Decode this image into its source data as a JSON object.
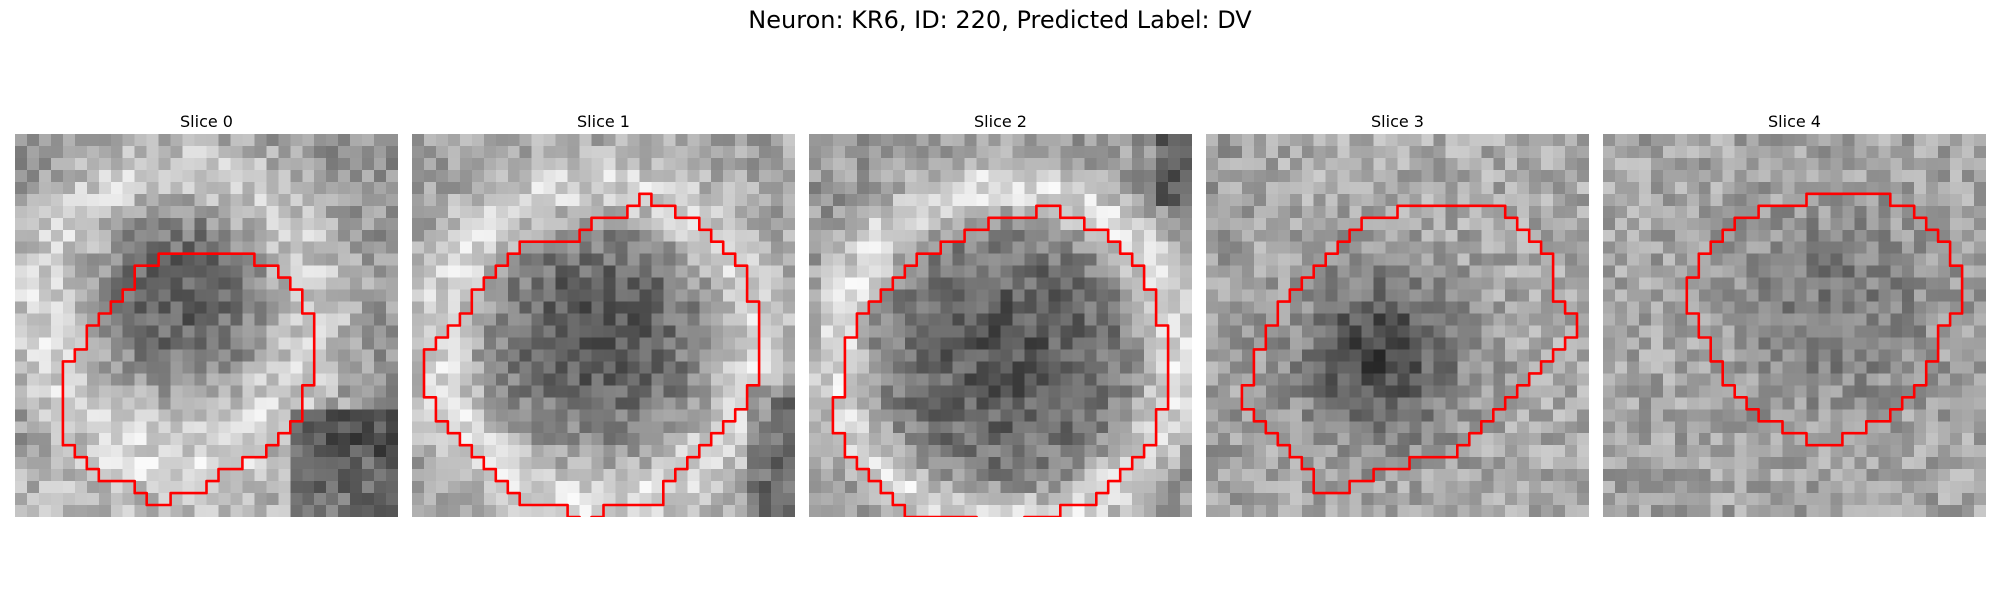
{
  "figure": {
    "title": "Neuron: KR6, ID: 220, Predicted Label: DV"
  },
  "panels": [
    {
      "label": "Slice 0",
      "outline": [
        [
          12,
          10
        ],
        [
          20,
          10
        ],
        [
          20,
          11
        ],
        [
          22,
          11
        ],
        [
          22,
          12
        ],
        [
          23,
          12
        ],
        [
          23,
          13
        ],
        [
          24,
          13
        ],
        [
          24,
          15
        ],
        [
          25,
          15
        ],
        [
          25,
          21
        ],
        [
          24,
          21
        ],
        [
          24,
          24
        ],
        [
          23,
          24
        ],
        [
          23,
          25
        ],
        [
          22,
          25
        ],
        [
          22,
          26
        ],
        [
          21,
          26
        ],
        [
          21,
          27
        ],
        [
          19,
          27
        ],
        [
          19,
          28
        ],
        [
          17,
          28
        ],
        [
          17,
          29
        ],
        [
          16,
          29
        ],
        [
          16,
          30
        ],
        [
          13,
          30
        ],
        [
          13,
          31
        ],
        [
          11,
          31
        ],
        [
          11,
          30
        ],
        [
          10,
          30
        ],
        [
          10,
          29
        ],
        [
          7,
          29
        ],
        [
          7,
          28
        ],
        [
          6,
          28
        ],
        [
          6,
          27
        ],
        [
          5,
          27
        ],
        [
          5,
          26
        ],
        [
          4,
          26
        ],
        [
          4,
          19
        ],
        [
          5,
          19
        ],
        [
          5,
          18
        ],
        [
          6,
          18
        ],
        [
          6,
          16
        ],
        [
          7,
          16
        ],
        [
          7,
          15
        ],
        [
          8,
          15
        ],
        [
          8,
          14
        ],
        [
          9,
          14
        ],
        [
          9,
          13
        ],
        [
          10,
          13
        ],
        [
          10,
          11
        ],
        [
          12,
          11
        ]
      ]
    },
    {
      "label": "Slice 1",
      "outline": [
        [
          13,
          9
        ],
        [
          14,
          9
        ],
        [
          14,
          8
        ],
        [
          15,
          8
        ],
        [
          15,
          7
        ],
        [
          18,
          7
        ],
        [
          18,
          6
        ],
        [
          19,
          6
        ],
        [
          19,
          5
        ],
        [
          20,
          5
        ],
        [
          20,
          6
        ],
        [
          22,
          6
        ],
        [
          22,
          7
        ],
        [
          24,
          7
        ],
        [
          24,
          8
        ],
        [
          25,
          8
        ],
        [
          25,
          9
        ],
        [
          26,
          9
        ],
        [
          26,
          10
        ],
        [
          27,
          10
        ],
        [
          27,
          11
        ],
        [
          28,
          11
        ],
        [
          28,
          14
        ],
        [
          29,
          14
        ],
        [
          29,
          21
        ],
        [
          28,
          21
        ],
        [
          28,
          23
        ],
        [
          27,
          23
        ],
        [
          27,
          24
        ],
        [
          26,
          24
        ],
        [
          26,
          25
        ],
        [
          25,
          25
        ],
        [
          25,
          26
        ],
        [
          24,
          26
        ],
        [
          24,
          27
        ],
        [
          23,
          27
        ],
        [
          23,
          28
        ],
        [
          22,
          28
        ],
        [
          22,
          29
        ],
        [
          21,
          29
        ],
        [
          21,
          31
        ],
        [
          16,
          31
        ],
        [
          16,
          32
        ],
        [
          15,
          32
        ],
        [
          15,
          33
        ],
        [
          14,
          33
        ],
        [
          14,
          32
        ],
        [
          13,
          32
        ],
        [
          13,
          31
        ],
        [
          9,
          31
        ],
        [
          9,
          30
        ],
        [
          8,
          30
        ],
        [
          8,
          29
        ],
        [
          7,
          29
        ],
        [
          7,
          28
        ],
        [
          6,
          28
        ],
        [
          6,
          27
        ],
        [
          5,
          27
        ],
        [
          5,
          26
        ],
        [
          4,
          26
        ],
        [
          4,
          25
        ],
        [
          3,
          25
        ],
        [
          3,
          24
        ],
        [
          2,
          24
        ],
        [
          2,
          22
        ],
        [
          1,
          22
        ],
        [
          1,
          18
        ],
        [
          2,
          18
        ],
        [
          2,
          17
        ],
        [
          3,
          17
        ],
        [
          3,
          16
        ],
        [
          4,
          16
        ],
        [
          4,
          15
        ],
        [
          5,
          15
        ],
        [
          5,
          13
        ],
        [
          6,
          13
        ],
        [
          6,
          12
        ],
        [
          7,
          12
        ],
        [
          7,
          11
        ],
        [
          8,
          11
        ],
        [
          8,
          10
        ],
        [
          9,
          10
        ],
        [
          9,
          9
        ],
        [
          13,
          9
        ]
      ]
    },
    {
      "label": "Slice 2",
      "outline": [
        [
          10,
          10
        ],
        [
          11,
          10
        ],
        [
          11,
          9
        ],
        [
          13,
          9
        ],
        [
          13,
          8
        ],
        [
          15,
          8
        ],
        [
          15,
          7
        ],
        [
          19,
          7
        ],
        [
          19,
          6
        ],
        [
          21,
          6
        ],
        [
          21,
          7
        ],
        [
          23,
          7
        ],
        [
          23,
          8
        ],
        [
          25,
          8
        ],
        [
          25,
          9
        ],
        [
          26,
          9
        ],
        [
          26,
          10
        ],
        [
          27,
          10
        ],
        [
          27,
          11
        ],
        [
          28,
          11
        ],
        [
          28,
          13
        ],
        [
          29,
          13
        ],
        [
          29,
          16
        ],
        [
          30,
          16
        ],
        [
          30,
          23
        ],
        [
          29,
          23
        ],
        [
          29,
          26
        ],
        [
          28,
          26
        ],
        [
          28,
          27
        ],
        [
          27,
          27
        ],
        [
          27,
          28
        ],
        [
          26,
          28
        ],
        [
          26,
          29
        ],
        [
          25,
          29
        ],
        [
          25,
          30
        ],
        [
          24,
          30
        ],
        [
          24,
          31
        ],
        [
          21,
          31
        ],
        [
          21,
          32
        ],
        [
          18,
          32
        ],
        [
          18,
          33
        ],
        [
          14,
          33
        ],
        [
          14,
          32
        ],
        [
          8,
          32
        ],
        [
          8,
          31
        ],
        [
          7,
          31
        ],
        [
          7,
          30
        ],
        [
          6,
          30
        ],
        [
          6,
          29
        ],
        [
          5,
          29
        ],
        [
          5,
          28
        ],
        [
          4,
          28
        ],
        [
          4,
          27
        ],
        [
          3,
          27
        ],
        [
          3,
          25
        ],
        [
          2,
          25
        ],
        [
          2,
          22
        ],
        [
          3,
          22
        ],
        [
          3,
          17
        ],
        [
          4,
          17
        ],
        [
          4,
          15
        ],
        [
          5,
          15
        ],
        [
          5,
          14
        ],
        [
          6,
          14
        ],
        [
          6,
          13
        ],
        [
          7,
          13
        ],
        [
          7,
          12
        ],
        [
          8,
          12
        ],
        [
          8,
          11
        ],
        [
          9,
          11
        ],
        [
          9,
          10
        ],
        [
          10,
          10
        ]
      ]
    },
    {
      "label": "Slice 3",
      "outline": [
        [
          15,
          7
        ],
        [
          16,
          7
        ],
        [
          16,
          6
        ],
        [
          25,
          6
        ],
        [
          25,
          7
        ],
        [
          26,
          7
        ],
        [
          26,
          8
        ],
        [
          27,
          8
        ],
        [
          27,
          9
        ],
        [
          28,
          9
        ],
        [
          28,
          10
        ],
        [
          29,
          10
        ],
        [
          29,
          12
        ],
        [
          29,
          14
        ],
        [
          30,
          14
        ],
        [
          30,
          15
        ],
        [
          31,
          15
        ],
        [
          31,
          17
        ],
        [
          30,
          17
        ],
        [
          30,
          18
        ],
        [
          29,
          18
        ],
        [
          29,
          19
        ],
        [
          28,
          19
        ],
        [
          28,
          20
        ],
        [
          27,
          20
        ],
        [
          27,
          21
        ],
        [
          26,
          21
        ],
        [
          26,
          22
        ],
        [
          25,
          22
        ],
        [
          25,
          23
        ],
        [
          24,
          23
        ],
        [
          24,
          24
        ],
        [
          23,
          24
        ],
        [
          23,
          25
        ],
        [
          22,
          25
        ],
        [
          22,
          26
        ],
        [
          21,
          26
        ],
        [
          21,
          27
        ],
        [
          17,
          27
        ],
        [
          17,
          28
        ],
        [
          14,
          28
        ],
        [
          14,
          29
        ],
        [
          12,
          29
        ],
        [
          12,
          30
        ],
        [
          9,
          30
        ],
        [
          9,
          28
        ],
        [
          8,
          28
        ],
        [
          8,
          27
        ],
        [
          7,
          27
        ],
        [
          7,
          26
        ],
        [
          6,
          26
        ],
        [
          6,
          25
        ],
        [
          5,
          25
        ],
        [
          5,
          24
        ],
        [
          4,
          24
        ],
        [
          4,
          23
        ],
        [
          3,
          23
        ],
        [
          3,
          21
        ],
        [
          4,
          21
        ],
        [
          4,
          18
        ],
        [
          5,
          18
        ],
        [
          5,
          16
        ],
        [
          6,
          16
        ],
        [
          6,
          14
        ],
        [
          7,
          14
        ],
        [
          7,
          13
        ],
        [
          8,
          13
        ],
        [
          8,
          12
        ],
        [
          9,
          12
        ],
        [
          9,
          11
        ],
        [
          10,
          11
        ],
        [
          10,
          10
        ],
        [
          11,
          10
        ],
        [
          11,
          9
        ],
        [
          12,
          9
        ],
        [
          12,
          8
        ],
        [
          13,
          8
        ],
        [
          13,
          7
        ],
        [
          15,
          7
        ]
      ]
    },
    {
      "label": "Slice 4",
      "outline": [
        [
          15,
          6
        ],
        [
          17,
          6
        ],
        [
          17,
          5
        ],
        [
          24,
          5
        ],
        [
          24,
          6
        ],
        [
          26,
          6
        ],
        [
          26,
          7
        ],
        [
          27,
          7
        ],
        [
          27,
          8
        ],
        [
          28,
          8
        ],
        [
          28,
          9
        ],
        [
          29,
          9
        ],
        [
          29,
          11
        ],
        [
          30,
          11
        ],
        [
          30,
          15
        ],
        [
          29,
          15
        ],
        [
          29,
          16
        ],
        [
          28,
          16
        ],
        [
          28,
          19
        ],
        [
          27,
          19
        ],
        [
          27,
          21
        ],
        [
          26,
          21
        ],
        [
          26,
          22
        ],
        [
          25,
          22
        ],
        [
          25,
          23
        ],
        [
          24,
          23
        ],
        [
          24,
          24
        ],
        [
          22,
          24
        ],
        [
          22,
          25
        ],
        [
          20,
          25
        ],
        [
          20,
          26
        ],
        [
          17,
          26
        ],
        [
          17,
          25
        ],
        [
          15,
          25
        ],
        [
          15,
          24
        ],
        [
          13,
          24
        ],
        [
          13,
          23
        ],
        [
          12,
          23
        ],
        [
          12,
          22
        ],
        [
          11,
          22
        ],
        [
          11,
          21
        ],
        [
          10,
          21
        ],
        [
          10,
          19
        ],
        [
          9,
          19
        ],
        [
          9,
          17
        ],
        [
          8,
          17
        ],
        [
          8,
          15
        ],
        [
          7,
          15
        ],
        [
          7,
          12
        ],
        [
          8,
          12
        ],
        [
          8,
          10
        ],
        [
          9,
          10
        ],
        [
          9,
          9
        ],
        [
          10,
          9
        ],
        [
          10,
          8
        ],
        [
          11,
          8
        ],
        [
          11,
          7
        ],
        [
          13,
          7
        ],
        [
          13,
          6
        ],
        [
          15,
          6
        ]
      ]
    }
  ],
  "colors": {
    "outline": "#ff0000",
    "background": "#ffffff"
  }
}
